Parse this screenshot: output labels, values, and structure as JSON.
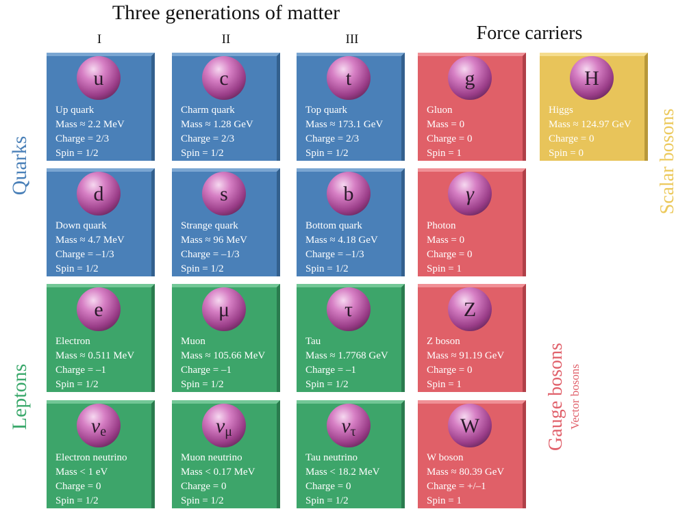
{
  "header": {
    "title": "Three generations of matter",
    "generations": [
      "I",
      "II",
      "III"
    ],
    "force_title": "Force carriers"
  },
  "side_labels": {
    "quarks": "Quarks",
    "leptons": "Leptons",
    "scalar": "Scalar bosons",
    "gauge": "Gauge bosons",
    "vector": "Vector bosons"
  },
  "particles": [
    {
      "symbol": "u",
      "name": "Up quark",
      "mass": "Mass ≈ 2.2 MeV",
      "charge": "Charge = 2/3",
      "spin": "Spin = 1/2"
    },
    {
      "symbol": "c",
      "name": "Charm quark",
      "mass": "Mass ≈ 1.28 GeV",
      "charge": "Charge = 2/3",
      "spin": "Spin = 1/2"
    },
    {
      "symbol": "t",
      "name": "Top quark",
      "mass": "Mass ≈ 173.1 GeV",
      "charge": "Charge = 2/3",
      "spin": "Spin = 1/2"
    },
    {
      "symbol": "g",
      "name": "Gluon",
      "mass": "Mass = 0",
      "charge": "Charge = 0",
      "spin": "Spin = 1"
    },
    {
      "symbol": "H",
      "name": "Higgs",
      "mass": "Mass ≈ 124.97 GeV",
      "charge": "Charge = 0",
      "spin": "Spin = 0"
    },
    {
      "symbol": "d",
      "name": "Down quark",
      "mass": "Mass ≈ 4.7 MeV",
      "charge": "Charge = –1/3",
      "spin": "Spin = 1/2"
    },
    {
      "symbol": "s",
      "name": "Strange quark",
      "mass": "Mass ≈ 96 MeV",
      "charge": "Charge = –1/3",
      "spin": "Spin = 1/2"
    },
    {
      "symbol": "b",
      "name": "Bottom quark",
      "mass": "Mass ≈ 4.18 GeV",
      "charge": "Charge = –1/3",
      "spin": "Spin = 1/2"
    },
    {
      "symbol": "γ",
      "name": "Photon",
      "mass": "Mass = 0",
      "charge": "Charge = 0",
      "spin": "Spin = 1"
    },
    {
      "symbol": "e",
      "name": "Electron",
      "mass": "Mass ≈ 0.511 MeV",
      "charge": "Charge = –1",
      "spin": "Spin = 1/2"
    },
    {
      "symbol": "μ",
      "name": "Muon",
      "mass": "Mass ≈ 105.66 MeV",
      "charge": "Charge = –1",
      "spin": "Spin = 1/2"
    },
    {
      "symbol": "τ",
      "name": "Tau",
      "mass": "Mass ≈ 1.7768 GeV",
      "charge": "Charge = –1",
      "spin": "Spin = 1/2"
    },
    {
      "symbol": "Z",
      "name": "Z boson",
      "mass": "Mass ≈ 91.19 GeV",
      "charge": "Charge = 0",
      "spin": "Spin = 1"
    },
    {
      "symbol": "ν",
      "subscript": "e",
      "name": "Electron neutrino",
      "mass": "Mass < 1 eV",
      "charge": "Charge = 0",
      "spin": "Spin = 1/2"
    },
    {
      "symbol": "ν",
      "subscript": "μ",
      "name": "Muon neutrino",
      "mass": "Mass < 0.17 MeV",
      "charge": "Charge = 0",
      "spin": "Spin = 1/2"
    },
    {
      "symbol": "ν",
      "subscript": "τ",
      "name": "Tau neutrino",
      "mass": "Mass < 18.2 MeV",
      "charge": "Charge = 0",
      "spin": "Spin = 1/2"
    },
    {
      "symbol": "W",
      "name": "W boson",
      "mass": "Mass ≈ 80.39 GeV",
      "charge": "Charge = +/–1",
      "spin": "Spin = 1"
    }
  ]
}
